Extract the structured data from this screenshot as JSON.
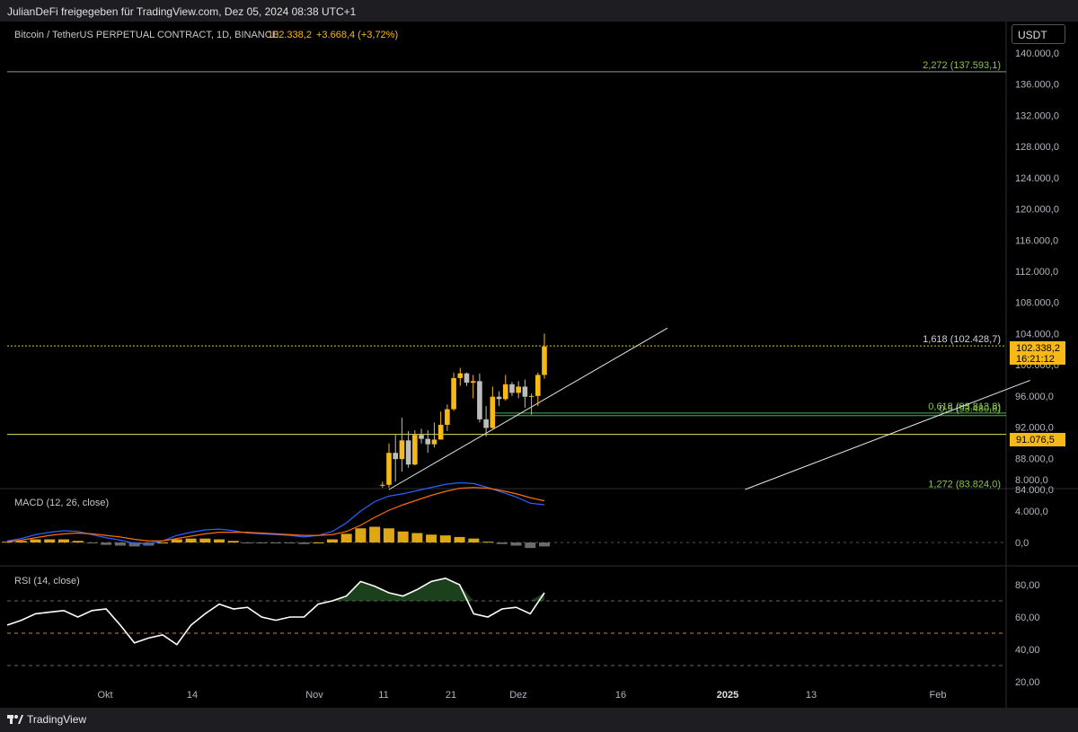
{
  "header": {
    "share_text": "JulianDeFi freigegeben für TradingView.com, Dez 05, 2024 08:38 UTC+1"
  },
  "symbol": {
    "name": "Bitcoin / TetherUS PERPETUAL CONTRACT, 1D, BINANCE",
    "price": "102.338,2",
    "change": "+3.668,4 (+3,72%)"
  },
  "currency_button": "USDT",
  "footer": {
    "brand": "TradingView"
  },
  "colors": {
    "bull": "#f7b917",
    "bear": "#bdbdbd",
    "macd": "#2962ff",
    "signal": "#ff6d00",
    "rsi": "#ffffff",
    "fib": "#8bc34a",
    "price_tag": "#f7b917"
  },
  "price_axis": {
    "ticks": [
      "140.000,0",
      "136.000,0",
      "132.000,0",
      "128.000,0",
      "124.000,0",
      "120.000,0",
      "116.000,0",
      "112.000,0",
      "108.000,0",
      "104.000,0",
      "100.000,0",
      "96.000,0",
      "92.000,0",
      "88.000,0",
      "84.000,0"
    ]
  },
  "price_tag": {
    "price": "102.338,2",
    "countdown": "16:21:12"
  },
  "level_tag": "91.076,5",
  "fib_labels": [
    {
      "text": "2,272 (137.593,1)",
      "price": 137593.1
    },
    {
      "text": "1,618 (102.428,7)",
      "price": 102428.7
    },
    {
      "text": "0,618 (93.813,8)",
      "price": 93813.8
    },
    {
      "text": "0,5 (93.480,8)",
      "price": 93480.8
    },
    {
      "text": "1,272 (83.824,0)",
      "price": 83824.0
    }
  ],
  "macd": {
    "title": "MACD (12, 26, close)",
    "ticks": [
      "8.000,0",
      "4.000,0",
      "0,0"
    ]
  },
  "rsi": {
    "title": "RSI (14, close)",
    "ticks": [
      "80,00",
      "60,00",
      "40,00",
      "20,00"
    ]
  },
  "time_axis": [
    "Okt",
    "14",
    "Nov",
    "11",
    "21",
    "Dez",
    "16",
    "2025",
    "13",
    "Feb"
  ],
  "chart_data": {
    "type": "candlestick",
    "title": "Bitcoin / TetherUS PERPETUAL CONTRACT, 1D, BINANCE",
    "ylim": [
      84000,
      140000
    ],
    "candles": [
      {
        "date": "Nov 10",
        "open": 84500,
        "high": 85000,
        "low": 84000,
        "close": 84600
      },
      {
        "date": "Nov 11",
        "open": 84600,
        "high": 89900,
        "low": 84100,
        "close": 88700
      },
      {
        "date": "Nov 12",
        "open": 88700,
        "high": 91000,
        "low": 85000,
        "close": 87900
      },
      {
        "date": "Nov 13",
        "open": 87900,
        "high": 93200,
        "low": 86300,
        "close": 90300
      },
      {
        "date": "Nov 14",
        "open": 90300,
        "high": 91500,
        "low": 86800,
        "close": 87200
      },
      {
        "date": "Nov 15",
        "open": 87200,
        "high": 91600,
        "low": 87100,
        "close": 91000
      },
      {
        "date": "Nov 16",
        "open": 91000,
        "high": 91800,
        "low": 89900,
        "close": 90500
      },
      {
        "date": "Nov 17",
        "open": 90500,
        "high": 91600,
        "low": 88700,
        "close": 89800
      },
      {
        "date": "Nov 18",
        "open": 89800,
        "high": 92600,
        "low": 89400,
        "close": 90400
      },
      {
        "date": "Nov 19",
        "open": 90400,
        "high": 94000,
        "low": 90400,
        "close": 92300
      },
      {
        "date": "Nov 20",
        "open": 92300,
        "high": 94900,
        "low": 91500,
        "close": 94300
      },
      {
        "date": "Nov 21",
        "open": 94300,
        "high": 99000,
        "low": 94100,
        "close": 98300
      },
      {
        "date": "Nov 22",
        "open": 98300,
        "high": 99600,
        "low": 97300,
        "close": 98900
      },
      {
        "date": "Nov 23",
        "open": 98900,
        "high": 99000,
        "low": 97300,
        "close": 97700
      },
      {
        "date": "Nov 24",
        "open": 97700,
        "high": 98700,
        "low": 95700,
        "close": 97900
      },
      {
        "date": "Nov 25",
        "open": 97900,
        "high": 98900,
        "low": 92600,
        "close": 93000
      },
      {
        "date": "Nov 26",
        "open": 93000,
        "high": 94700,
        "low": 90800,
        "close": 91900
      },
      {
        "date": "Nov 27",
        "open": 91900,
        "high": 97200,
        "low": 91800,
        "close": 95900
      },
      {
        "date": "Nov 28",
        "open": 95900,
        "high": 96600,
        "low": 94700,
        "close": 95600
      },
      {
        "date": "Nov 29",
        "open": 95600,
        "high": 98700,
        "low": 95400,
        "close": 97500
      },
      {
        "date": "Nov 30",
        "open": 97500,
        "high": 97800,
        "low": 96000,
        "close": 96400
      },
      {
        "date": "Dez 01",
        "open": 96400,
        "high": 97900,
        "low": 95700,
        "close": 97200
      },
      {
        "date": "Dez 02",
        "open": 97200,
        "high": 98100,
        "low": 94500,
        "close": 95900
      },
      {
        "date": "Dez 03",
        "open": 95900,
        "high": 96300,
        "low": 93600,
        "close": 96000
      },
      {
        "date": "Dez 04",
        "open": 96000,
        "high": 99000,
        "low": 94700,
        "close": 98700
      },
      {
        "date": "Dez 05",
        "open": 98700,
        "high": 104000,
        "low": 98200,
        "close": 102338.2
      }
    ],
    "levels": [
      137593.1,
      102428.7,
      93813.8,
      93480.8,
      91076.5
    ],
    "trendlines": [
      {
        "from": [
          "Nov 11",
          84000
        ],
        "to": [
          "Dez 24",
          104700
        ]
      },
      {
        "from": [
          "Jan 05",
          84000
        ],
        "to": [
          "Feb 18",
          98000
        ]
      }
    ],
    "macd_dates": [
      "Sep 21",
      "Sep 23",
      "Sep 25",
      "Sep 27",
      "Sep 29",
      "Okt 01",
      "Okt 03",
      "Okt 05",
      "Okt 07",
      "Okt 09",
      "Okt 11",
      "Okt 13",
      "Okt 15",
      "Okt 17",
      "Okt 19",
      "Okt 21",
      "Okt 23",
      "Okt 25",
      "Okt 27",
      "Okt 29",
      "Okt 31",
      "Nov 02",
      "Nov 04",
      "Nov 06",
      "Nov 08",
      "Nov 10",
      "Nov 12",
      "Nov 14",
      "Nov 16",
      "Nov 18",
      "Nov 20",
      "Nov 22",
      "Nov 24",
      "Nov 26",
      "Nov 28",
      "Nov 30",
      "Dez 02",
      "Dez 04",
      "Dez 05"
    ],
    "macd_line": [
      200,
      500,
      1000,
      1300,
      1500,
      1400,
      1000,
      600,
      300,
      -100,
      -200,
      200,
      900,
      1300,
      1600,
      1700,
      1500,
      1200,
      1100,
      1000,
      900,
      700,
      900,
      1400,
      2500,
      4000,
      5200,
      5900,
      6200,
      6600,
      7000,
      7400,
      7600,
      7500,
      7000,
      6400,
      5800,
      5000,
      4800
    ],
    "signal_line": [
      100,
      300,
      600,
      900,
      1100,
      1200,
      1100,
      900,
      700,
      400,
      200,
      200,
      500,
      800,
      1100,
      1300,
      1300,
      1300,
      1200,
      1100,
      1000,
      900,
      900,
      1000,
      1400,
      2200,
      3200,
      4100,
      4800,
      5400,
      6000,
      6500,
      6900,
      7000,
      6900,
      6600,
      6200,
      5700,
      5300
    ],
    "histogram": [
      100,
      200,
      400,
      400,
      400,
      200,
      -100,
      -300,
      -400,
      -500,
      -400,
      0,
      400,
      500,
      500,
      400,
      200,
      -100,
      -100,
      -100,
      -100,
      -200,
      0,
      400,
      1100,
      1800,
      2000,
      1800,
      1400,
      1200,
      1000,
      900,
      700,
      500,
      100,
      -200,
      -400,
      -700,
      -500
    ],
    "rsi_dates": [
      "Sep 21",
      "Sep 23",
      "Sep 25",
      "Sep 27",
      "Sep 29",
      "Okt 01",
      "Okt 03",
      "Okt 05",
      "Okt 07",
      "Okt 09",
      "Okt 11",
      "Okt 13",
      "Okt 15",
      "Okt 17",
      "Okt 19",
      "Okt 21",
      "Okt 23",
      "Okt 25",
      "Okt 27",
      "Okt 29",
      "Okt 31",
      "Nov 02",
      "Nov 04",
      "Nov 06",
      "Nov 08",
      "Nov 10",
      "Nov 12",
      "Nov 14",
      "Nov 16",
      "Nov 18",
      "Nov 20",
      "Nov 22",
      "Nov 24",
      "Nov 26",
      "Nov 28",
      "Nov 30",
      "Dez 02",
      "Dez 04",
      "Dez 05"
    ],
    "rsi_values": [
      55,
      58,
      62,
      63,
      64,
      60,
      64,
      65,
      55,
      44,
      47,
      49,
      43,
      55,
      62,
      68,
      65,
      66,
      60,
      58,
      60,
      60,
      68,
      70,
      73,
      82,
      79,
      75,
      73,
      77,
      82,
      84,
      80,
      62,
      60,
      65,
      66,
      62,
      75
    ],
    "rsi_levels": [
      70,
      50,
      30
    ]
  }
}
